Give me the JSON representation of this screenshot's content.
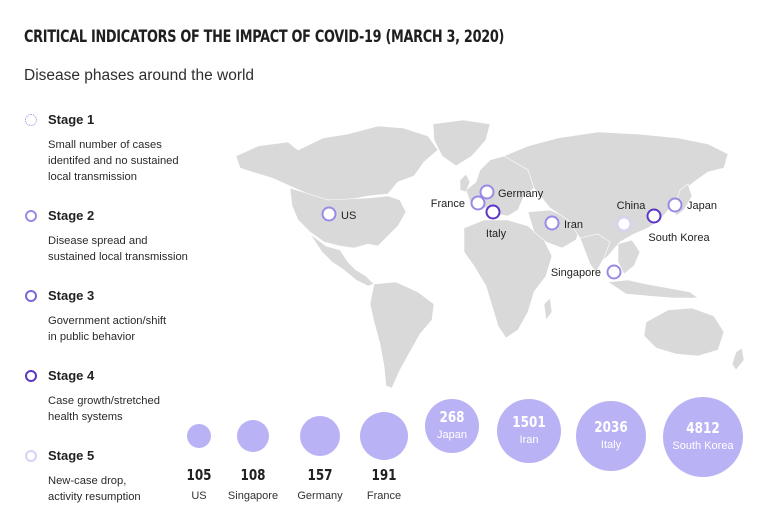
{
  "title": "Critical indicators of the impact of COVID-19 (March 3, 2020)",
  "subtitle": "Disease phases around the world",
  "colors": {
    "land": "#d9d9d9",
    "stage1": "#b9aef0",
    "stage2": "#9a8ae6",
    "stage3": "#7e66dd",
    "stage4": "#5a35c8",
    "stage5": "#d8d0f7",
    "bubble": "#b9b3f5"
  },
  "stages": [
    {
      "name": "Stage 1",
      "desc": [
        "Small number of cases",
        "identifed and no sustained",
        "local transmission"
      ]
    },
    {
      "name": "Stage 2",
      "desc": [
        "Disease spread and",
        "sustained local transmission"
      ]
    },
    {
      "name": "Stage 3",
      "desc": [
        "Government action/shift",
        "in public behavior"
      ]
    },
    {
      "name": "Stage 4",
      "desc": [
        "Case growth/stretched",
        "health systems"
      ]
    },
    {
      "name": "Stage 5",
      "desc": [
        "New-case drop,",
        "activity resumption"
      ]
    }
  ],
  "map_labels": {
    "us": "US",
    "france": "France",
    "germany": "Germany",
    "italy": "Italy",
    "iran": "Iran",
    "china": "China",
    "japan": "Japan",
    "south_korea": "South Korea",
    "singapore": "Singapore"
  },
  "chart_data": {
    "type": "bubble",
    "series_name": "",
    "points": [
      {
        "country": "US",
        "value": 105
      },
      {
        "country": "Singapore",
        "value": 108
      },
      {
        "country": "Germany",
        "value": 157
      },
      {
        "country": "France",
        "value": 191
      },
      {
        "country": "Japan",
        "value": 268
      },
      {
        "country": "Iran",
        "value": 1501
      },
      {
        "country": "Italy",
        "value": 2036
      },
      {
        "country": "South Korea",
        "value": 4812
      }
    ]
  }
}
